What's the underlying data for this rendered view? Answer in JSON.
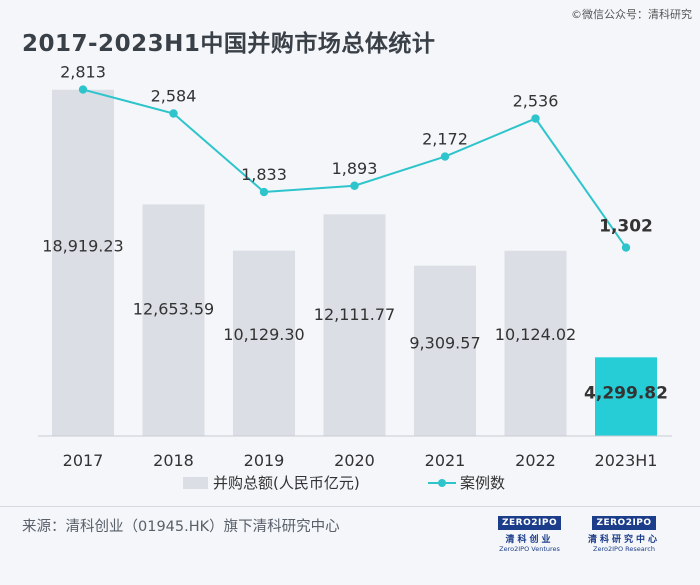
{
  "watermark": "©微信公众号：清科研究",
  "title": "2017-2023H1中国并购市场总体统计",
  "source": "来源：清科创业（01945.HK）旗下清科研究中心",
  "logos": [
    {
      "box": "ZERO2IPO",
      "cn": "清科创业",
      "en": "Zero2IPO Ventures"
    },
    {
      "box": "ZERO2IPO",
      "cn": "清科研究中心",
      "en": "Zero2IPO Research"
    }
  ],
  "colors": {
    "bar": "#dcdee6",
    "bar_highlight": "#26cdd6",
    "line": "#2ec4cc",
    "text": "#333333"
  },
  "chart_data": {
    "type": "bar+line",
    "title": "2017-2023H1中国并购市场总体统计",
    "categories": [
      "2017",
      "2018",
      "2019",
      "2020",
      "2021",
      "2022",
      "2023H1"
    ],
    "series": [
      {
        "name": "并购总额(人民币亿元)",
        "type": "bar",
        "axis": "left",
        "values": [
          18919.23,
          12653.59,
          10129.3,
          12111.77,
          9309.57,
          10124.02,
          4299.82
        ],
        "labels": [
          "18,919.23",
          "12,653.59",
          "10,129.30",
          "12,111.77",
          "9,309.57",
          "10,124.02",
          "4,299.82"
        ]
      },
      {
        "name": "案例数",
        "type": "line",
        "axis": "right",
        "values": [
          2813,
          2584,
          1833,
          1893,
          2172,
          2536,
          1302
        ],
        "labels": [
          "2,813",
          "2,584",
          "1,833",
          "1,893",
          "2,172",
          "2,536",
          "1,302"
        ]
      }
    ],
    "ylim_left": [
      0,
      20000
    ],
    "ylim_right": [
      -500,
      3000
    ],
    "grid": false,
    "legend": "bottom"
  }
}
